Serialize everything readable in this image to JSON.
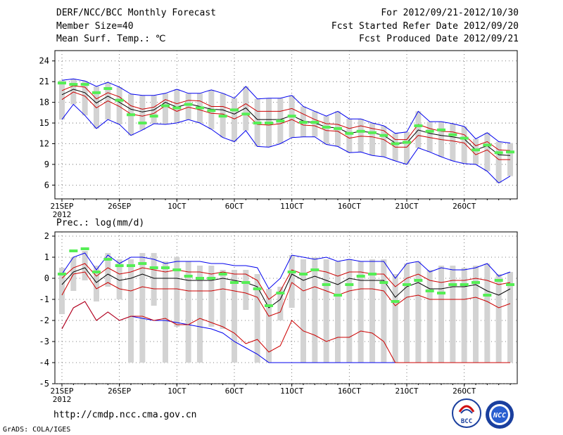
{
  "header": {
    "title": "DERF/NCC/BCC Monthly Forecast",
    "member_size": "Member Size=40",
    "variable": "Mean Surf. Temp.: ℃",
    "period": "For 2012/09/21-2012/10/30",
    "refer_date": "Fcst Started Refer Date 2012/09/20",
    "produced_date": "Fcst Produced Date 2012/09/21"
  },
  "footer": {
    "url": "http://cmdp.ncc.cma.gov.cn",
    "credit": "GrADS: COLA/IGES",
    "logo_left": "BCC",
    "logo_right": "NCC"
  },
  "colors": {
    "box": "#d3d3d3",
    "median": "#000000",
    "quartile": "#cc0000",
    "extreme": "#0000ee",
    "obs": "#55ee55"
  },
  "chart_data": [
    {
      "type": "box",
      "title": "Mean Surf. Temp.: ℃",
      "xlabel": "",
      "ylabel": "℃",
      "ylim": [
        4,
        25.5
      ],
      "yticks": [
        6,
        9,
        12,
        15,
        18,
        21,
        24
      ],
      "xtick_labels": [
        {
          "day": 0,
          "label": "21SEP"
        },
        {
          "day": 5,
          "label": "26SEP"
        },
        {
          "day": 10,
          "label": "1OCT"
        },
        {
          "day": 15,
          "label": "6OCT"
        },
        {
          "day": 20,
          "label": "11OCT"
        },
        {
          "day": 25,
          "label": "16OCT"
        },
        {
          "day": 30,
          "label": "21OCT"
        },
        {
          "day": 35,
          "label": "26OCT"
        }
      ],
      "year_label": "2012",
      "days": 40,
      "series": [
        {
          "name": "max",
          "values": [
            21.2,
            21.4,
            21.1,
            20.3,
            20.9,
            20.2,
            19.2,
            19.0,
            19.0,
            19.3,
            19.9,
            19.3,
            19.3,
            19.8,
            19.3,
            18.6,
            20.3,
            18.5,
            18.6,
            18.6,
            19.0,
            17.4,
            16.7,
            16.0,
            16.7,
            15.6,
            15.6,
            15.0,
            14.6,
            13.5,
            13.7,
            16.7,
            15.2,
            15.2,
            14.9,
            14.5,
            12.7,
            13.6,
            12.3,
            12.1
          ]
        },
        {
          "name": "q75",
          "values": [
            19.7,
            20.4,
            20.2,
            18.5,
            19.4,
            18.8,
            17.5,
            17.0,
            17.3,
            18.4,
            17.8,
            18.3,
            18.2,
            17.4,
            17.4,
            16.8,
            17.8,
            16.7,
            16.7,
            16.7,
            17.1,
            16.3,
            15.5,
            14.9,
            14.8,
            14.2,
            14.6,
            14.2,
            13.9,
            12.6,
            12.6,
            14.8,
            14.2,
            13.8,
            13.7,
            13.3,
            11.7,
            12.3,
            11.1,
            11.0
          ]
        },
        {
          "name": "median",
          "values": [
            19.1,
            19.9,
            19.4,
            17.9,
            18.9,
            18.0,
            17.0,
            16.6,
            16.9,
            18.0,
            17.3,
            17.8,
            17.4,
            17.0,
            16.9,
            16.3,
            17.2,
            15.5,
            15.5,
            15.5,
            16.1,
            15.3,
            15.0,
            14.4,
            14.3,
            13.5,
            13.8,
            13.6,
            13.2,
            12.1,
            12.1,
            14.0,
            13.5,
            13.2,
            13.0,
            12.7,
            11.1,
            11.7,
            10.4,
            10.3
          ]
        },
        {
          "name": "q25",
          "values": [
            18.4,
            19.5,
            18.9,
            17.2,
            18.2,
            17.4,
            16.3,
            16.0,
            16.4,
            17.5,
            16.7,
            17.3,
            16.9,
            16.4,
            16.3,
            15.6,
            16.4,
            14.8,
            14.7,
            14.9,
            15.5,
            14.7,
            14.6,
            13.9,
            13.8,
            12.8,
            13.1,
            13.0,
            12.6,
            11.5,
            11.5,
            13.2,
            12.9,
            12.6,
            12.4,
            12.1,
            10.4,
            11.1,
            9.7,
            9.7
          ]
        },
        {
          "name": "min",
          "values": [
            15.5,
            17.7,
            16.1,
            14.2,
            15.5,
            14.8,
            13.2,
            14.0,
            14.9,
            14.8,
            15.0,
            15.5,
            15.0,
            14.1,
            12.9,
            12.3,
            13.9,
            11.6,
            11.5,
            12.0,
            12.9,
            13.0,
            13.0,
            11.9,
            11.6,
            10.7,
            10.8,
            10.3,
            10.1,
            9.5,
            9.0,
            11.4,
            10.8,
            10.1,
            9.5,
            9.1,
            9.0,
            8.0,
            6.3,
            7.3
          ]
        },
        {
          "name": "observed",
          "values": [
            20.8,
            20.6,
            20.6,
            19.4,
            20.0,
            18.3,
            16.2,
            15.0,
            16.0,
            17.5,
            17.2,
            17.7,
            17.2,
            16.8,
            16.0,
            16.9,
            16.3,
            15.0,
            15.0,
            15.3,
            16.0,
            15.1,
            15.1,
            14.4,
            14.2,
            13.5,
            13.8,
            13.6,
            13.2,
            12.0,
            12.2,
            14.6,
            13.8,
            14.0,
            13.3,
            12.8,
            11.1,
            11.8,
            10.7,
            10.8
          ]
        }
      ]
    },
    {
      "type": "box",
      "title": "Prec.: log(mm/d)",
      "xlabel": "",
      "ylabel": "log(mm/d)",
      "ylim": [
        -5,
        2.2
      ],
      "yticks": [
        -5,
        -4,
        -3,
        -2,
        -1,
        0,
        1,
        2
      ],
      "xtick_labels": [
        {
          "day": 0,
          "label": "21SEP"
        },
        {
          "day": 5,
          "label": "26SEP"
        },
        {
          "day": 10,
          "label": "1OCT"
        },
        {
          "day": 15,
          "label": "6OCT"
        },
        {
          "day": 20,
          "label": "11OCT"
        },
        {
          "day": 25,
          "label": "16OCT"
        },
        {
          "day": 30,
          "label": "21OCT"
        },
        {
          "day": 35,
          "label": "26OCT"
        }
      ],
      "year_label": "2012",
      "days": 40,
      "series": [
        {
          "name": "max",
          "values": [
            0.2,
            1.0,
            1.2,
            0.4,
            1.1,
            0.7,
            1.0,
            1.0,
            0.9,
            0.7,
            0.8,
            0.8,
            0.8,
            0.7,
            0.7,
            0.6,
            0.6,
            0.5,
            -0.5,
            0.0,
            1.1,
            1.0,
            0.9,
            1.0,
            0.8,
            0.9,
            0.8,
            0.8,
            0.8,
            0.0,
            0.7,
            0.8,
            0.3,
            0.5,
            0.4,
            0.4,
            0.5,
            0.7,
            0.1,
            0.3
          ]
        },
        {
          "name": "q75",
          "values": [
            0.0,
            0.5,
            0.7,
            0.1,
            0.5,
            0.2,
            0.3,
            0.5,
            0.4,
            0.3,
            0.4,
            0.3,
            0.3,
            0.2,
            0.3,
            0.2,
            0.2,
            -0.1,
            -1.0,
            -0.6,
            0.4,
            0.2,
            0.4,
            0.3,
            0.1,
            0.3,
            0.3,
            0.2,
            0.2,
            -0.4,
            0.0,
            0.2,
            -0.1,
            -0.2,
            -0.1,
            -0.1,
            0.0,
            -0.1,
            -0.3,
            -0.2
          ]
        },
        {
          "name": "median",
          "values": [
            -0.3,
            0.3,
            0.5,
            -0.2,
            0.2,
            -0.1,
            0.0,
            0.2,
            0.0,
            0.0,
            0.0,
            -0.1,
            -0.1,
            -0.1,
            0.0,
            -0.1,
            -0.2,
            -0.4,
            -1.4,
            -1.0,
            0.2,
            -0.1,
            0.1,
            -0.1,
            -0.3,
            0.0,
            -0.1,
            -0.1,
            -0.1,
            -0.9,
            -0.4,
            -0.2,
            -0.5,
            -0.5,
            -0.4,
            -0.4,
            -0.3,
            -0.6,
            -0.8,
            -0.5
          ]
        },
        {
          "name": "q25",
          "values": [
            -0.8,
            0.2,
            0.3,
            -0.5,
            -0.2,
            -0.5,
            -0.6,
            -0.4,
            -0.5,
            -0.5,
            -0.5,
            -0.6,
            -0.6,
            -0.6,
            -0.5,
            -0.6,
            -0.7,
            -0.9,
            -1.8,
            -1.6,
            -0.2,
            -0.6,
            -0.4,
            -0.6,
            -0.8,
            -0.6,
            -0.5,
            -0.5,
            -0.6,
            -1.3,
            -0.9,
            -0.8,
            -1.0,
            -1.0,
            -1.0,
            -1.0,
            -0.9,
            -1.1,
            -1.4,
            -1.2
          ]
        },
        {
          "name": "min",
          "values": [
            -2.4,
            -1.4,
            -1.1,
            -2.0,
            -1.6,
            -2.0,
            -1.8,
            -1.9,
            -2.0,
            -2.0,
            -2.1,
            -2.2,
            -2.3,
            -2.4,
            -2.6,
            -3.0,
            -3.3,
            -3.6,
            -4.0,
            -4.0,
            -4.0,
            -4.0,
            -4.0,
            -4.0,
            -4.0,
            -4.0,
            -4.0,
            -4.0,
            -4.0,
            -4.0,
            -4.0,
            -4.0,
            -4.0,
            -4.0,
            -4.0,
            -4.0,
            -4.0,
            -4.0,
            -4.0,
            -4.0
          ]
        },
        {
          "name": "min_detail",
          "values": [
            -2.4,
            -1.4,
            -1.1,
            -2.0,
            -1.6,
            -2.0,
            -1.8,
            -1.8,
            -2.0,
            -1.9,
            -2.2,
            -2.2,
            -1.9,
            -2.1,
            -2.3,
            -2.6,
            -3.1,
            -2.9,
            -3.5,
            -3.2,
            -2.0,
            -2.5,
            -2.7,
            -3.0,
            -2.8,
            -2.8,
            -2.5,
            -2.6,
            -3.0,
            -4.0,
            -4.0,
            -4.0,
            -4.0,
            -4.0,
            -4.0,
            -4.0,
            -4.0,
            -4.0,
            -4.0,
            -4.0
          ]
        },
        {
          "name": "box_low",
          "values": [
            -1.7,
            -0.6,
            -0.1,
            -1.1,
            -0.4,
            -1.0,
            -4.0,
            -4.0,
            -1.3,
            -4.0,
            -2.3,
            -4.0,
            -4.0,
            -2.3,
            -2.4,
            -4.0,
            -1.5,
            -4.0,
            -4.0,
            -2.0,
            -1.4,
            -4.0,
            -4.0,
            -4.0,
            -4.0,
            -4.0,
            -4.0,
            -4.0,
            -4.0,
            -4.0,
            -4.0,
            -4.0,
            -4.0,
            -4.0,
            -4.0,
            -4.0,
            -4.0,
            -4.0,
            -4.0,
            -4.0
          ]
        },
        {
          "name": "box_high",
          "values": [
            0.5,
            1.0,
            1.3,
            0.6,
            1.2,
            0.9,
            0.9,
            1.2,
            1.2,
            0.8,
            1.0,
            0.8,
            0.6,
            0.6,
            0.4,
            0.4,
            0.4,
            0.2,
            -0.5,
            -0.4,
            1.1,
            0.9,
            1.0,
            0.9,
            0.8,
            0.9,
            0.8,
            0.9,
            0.9,
            0.2,
            0.7,
            0.8,
            0.4,
            0.6,
            0.6,
            0.5,
            0.6,
            0.7,
            0.2,
            0.3
          ]
        },
        {
          "name": "observed",
          "values": [
            0.2,
            1.3,
            1.4,
            0.3,
            0.9,
            0.6,
            0.6,
            0.7,
            0.5,
            0.5,
            0.4,
            0.1,
            0.0,
            0.0,
            0.2,
            -0.2,
            -0.2,
            -0.5,
            -1.3,
            -0.7,
            0.3,
            0.2,
            0.4,
            -0.3,
            -0.8,
            -0.3,
            0.1,
            0.2,
            -0.2,
            -1.1,
            -0.3,
            -0.1,
            -0.6,
            -0.7,
            -0.3,
            -0.3,
            -0.2,
            -0.8,
            -0.1,
            -0.3
          ]
        }
      ]
    }
  ]
}
